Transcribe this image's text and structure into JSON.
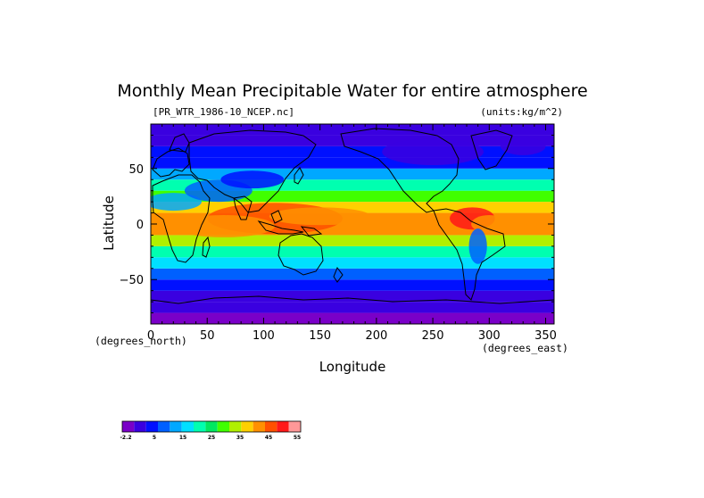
{
  "chart_data": {
    "type": "heatmap",
    "title": "Monthly Mean Precipitable Water for entire atmosphere",
    "file_label": "[PR_WTR_1986-10_NCEP.nc]",
    "units_label": "(units:kg/m^2)",
    "xlabel": "Longitude",
    "ylabel": "Latitude",
    "x_unit_note": "(degrees_east)",
    "y_unit_note": "(degrees_north)",
    "xlim": [
      0,
      357.5
    ],
    "ylim": [
      -90,
      90
    ],
    "x_ticks": [
      "0",
      "50",
      "100",
      "150",
      "200",
      "250",
      "300",
      "350"
    ],
    "y_ticks": [
      "50",
      "0",
      "−50"
    ],
    "x_tick_values": [
      0,
      50,
      100,
      150,
      200,
      250,
      300,
      350
    ],
    "y_tick_values": [
      50,
      0,
      -50
    ],
    "colorbar_labels": [
      "-2.2",
      "5",
      "15",
      "25",
      "35",
      "45",
      "55"
    ],
    "colorbar_colors": [
      "#7a00c8",
      "#3a00e0",
      "#0010ff",
      "#0060ff",
      "#00a8ff",
      "#00e0ff",
      "#00ffb0",
      "#00e860",
      "#40ff00",
      "#b0f000",
      "#ffd000",
      "#ff9000",
      "#ff5000",
      "#ff1818",
      "#ff9898"
    ],
    "zonal_mean_profile": {
      "latitude": [
        -90,
        -80,
        -70,
        -60,
        -50,
        -40,
        -30,
        -20,
        -10,
        0,
        10,
        20,
        30,
        40,
        50,
        60,
        70,
        80,
        90
      ],
      "value": [
        0,
        1,
        3,
        7,
        11,
        16,
        22,
        31,
        42,
        46,
        44,
        35,
        27,
        19,
        12,
        8,
        6,
        4,
        3
      ]
    }
  }
}
